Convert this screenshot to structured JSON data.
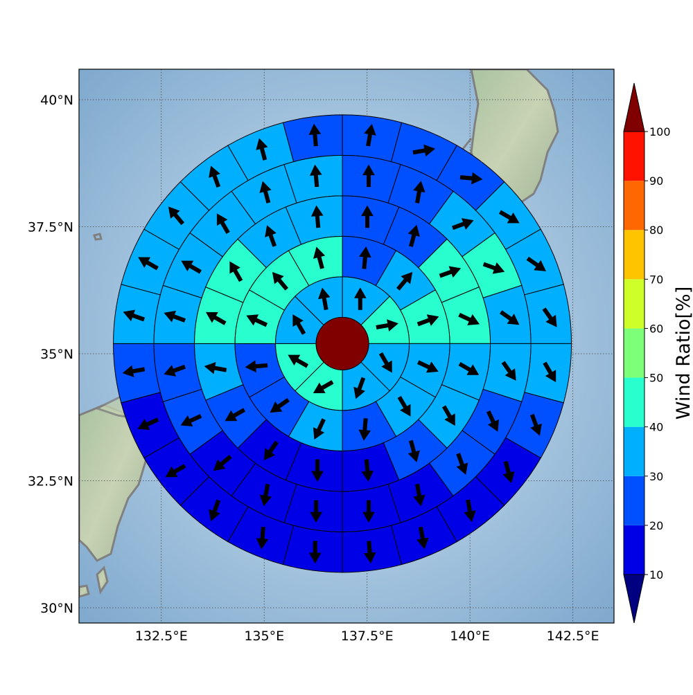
{
  "chart_data": {
    "type": "polar-sector-map",
    "title": "",
    "colorbar": {
      "title": "Wind Ratio[%]",
      "ticks": [
        "10",
        "20",
        "30",
        "40",
        "50",
        "60",
        "70",
        "80",
        "90",
        "100"
      ],
      "levels": [
        10,
        20,
        30,
        40,
        50,
        60,
        70,
        80,
        90,
        100
      ],
      "colors": [
        "#0000e6",
        "#0050ff",
        "#00b0ff",
        "#29ffce",
        "#7dff7a",
        "#ceff29",
        "#ffc400",
        "#ff6800",
        "#ff1300"
      ],
      "under_color": "#000080",
      "over_color": "#800000",
      "extend": "both"
    },
    "axes": {
      "lon_ticks": [
        "132.5°E",
        "135°E",
        "137.5°E",
        "140°E",
        "142.5°E"
      ],
      "lat_ticks": [
        "40°N",
        "37.5°N",
        "35°N",
        "32.5°N",
        "30°N"
      ],
      "lon_values": [
        132.5,
        135,
        137.5,
        140,
        142.5
      ],
      "lat_values": [
        40,
        37.5,
        35,
        32.5,
        30
      ],
      "lon_range": [
        130.5,
        143.5
      ],
      "lat_range": [
        29.7,
        40.6
      ],
      "grid": true
    },
    "center": {
      "lon": 136.9,
      "lat": 35.2,
      "value": 100
    },
    "rings": [
      {
        "sectors": 8,
        "values": [
          30,
          40,
          30,
          30,
          40,
          40,
          30,
          30
        ],
        "arrow_dirs": [
          0,
          80,
          150,
          200,
          240,
          300,
          330,
          350
        ]
      },
      {
        "sectors": 12,
        "values": [
          20,
          30,
          40,
          30,
          30,
          20,
          30,
          20,
          20,
          40,
          40,
          40
        ],
        "arrow_dirs": [
          5,
          40,
          70,
          115,
          150,
          185,
          205,
          235,
          265,
          295,
          320,
          345
        ]
      },
      {
        "sectors": 16,
        "values": [
          20,
          20,
          40,
          40,
          30,
          30,
          20,
          10,
          10,
          10,
          20,
          30,
          40,
          40,
          30,
          30
        ],
        "arrow_dirs": [
          0,
          15,
          70,
          115,
          120,
          150,
          165,
          175,
          180,
          215,
          240,
          280,
          300,
          330,
          340,
          355
        ]
      },
      {
        "sectors": 20,
        "values": [
          20,
          20,
          30,
          40,
          30,
          30,
          20,
          20,
          10,
          10,
          10,
          10,
          10,
          20,
          20,
          30,
          30,
          30,
          30,
          30
        ],
        "arrow_dirs": [
          0,
          10,
          70,
          110,
          125,
          145,
          155,
          160,
          170,
          180,
          180,
          190,
          230,
          245,
          250,
          290,
          300,
          330,
          345,
          355
        ]
      },
      {
        "sectors": 24,
        "values": [
          20,
          20,
          20,
          30,
          30,
          30,
          30,
          20,
          10,
          10,
          10,
          10,
          10,
          10,
          10,
          10,
          10,
          20,
          30,
          30,
          30,
          30,
          30,
          20
        ],
        "arrow_dirs": [
          10,
          80,
          95,
          120,
          125,
          145,
          150,
          160,
          165,
          170,
          170,
          175,
          180,
          185,
          200,
          240,
          245,
          260,
          290,
          300,
          320,
          340,
          345,
          355
        ]
      }
    ]
  }
}
